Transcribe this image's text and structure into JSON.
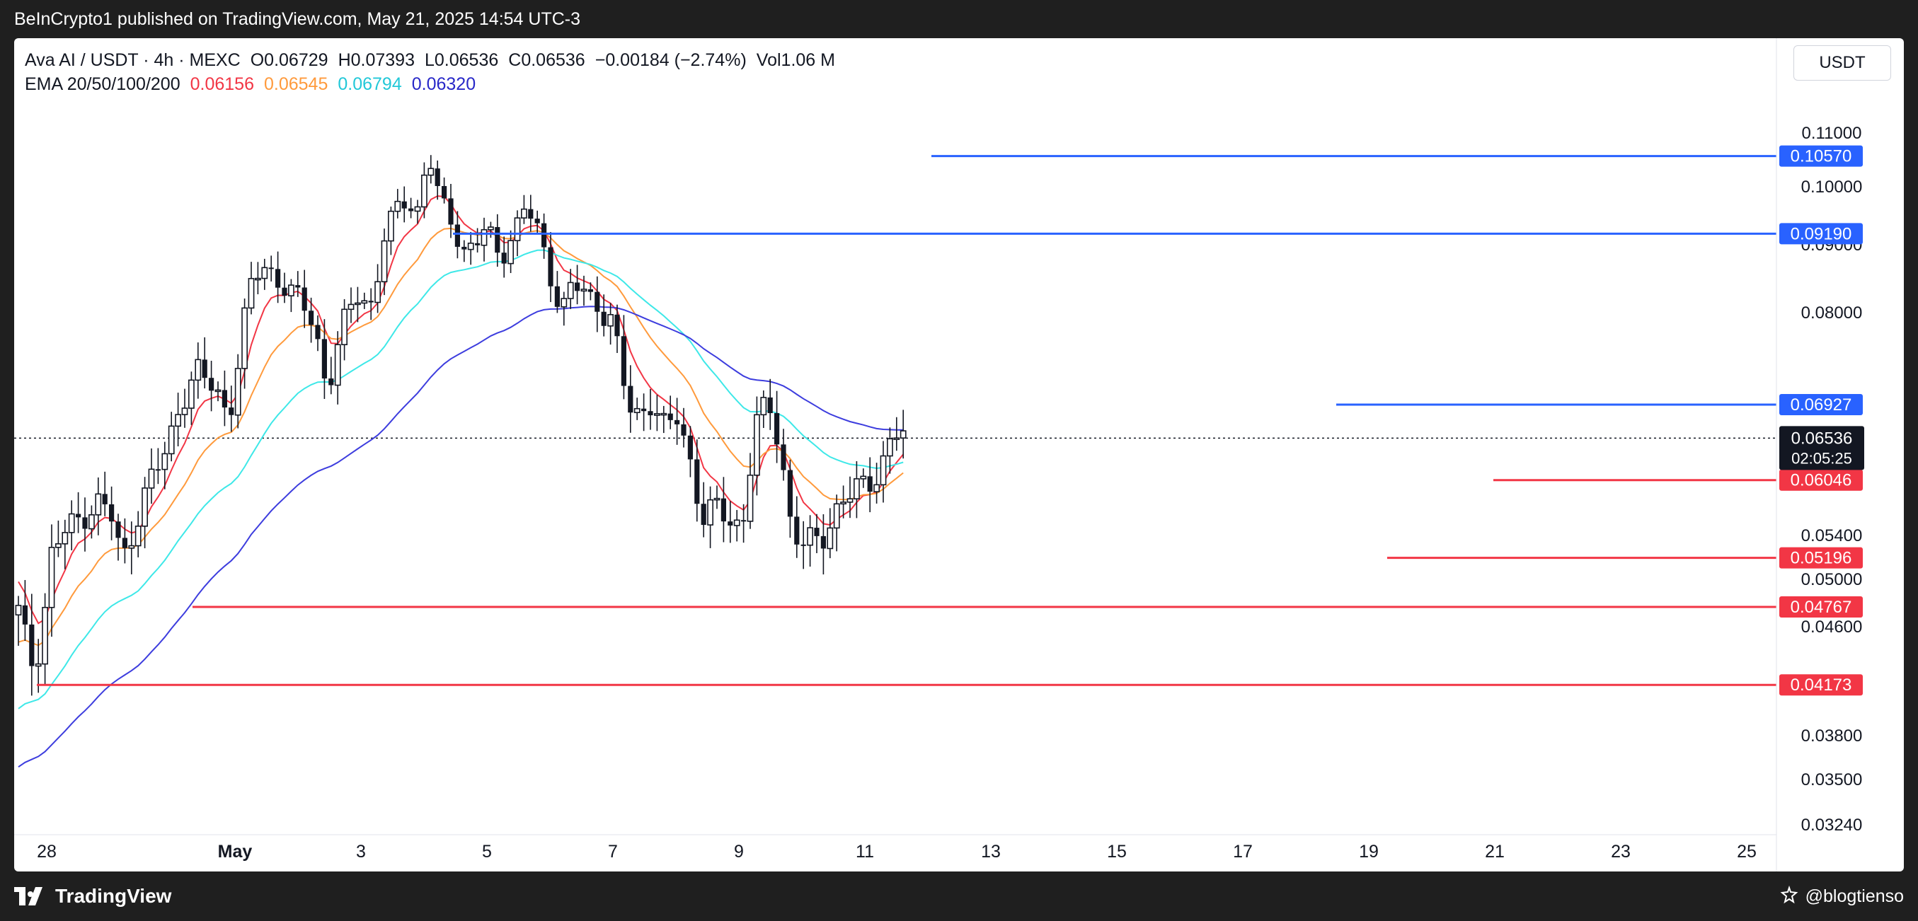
{
  "header": {
    "published": "BeInCrypto1 published on TradingView.com, May 21, 2025 14:54 UTC-3"
  },
  "footer": {
    "brand": "TradingView",
    "credit": "@blogtienso"
  },
  "symbol": {
    "title": "Ava AI / USDT · 4h · MEXC",
    "open": "O0.06729",
    "high": "H0.07393",
    "low": "L0.06536",
    "close": "C0.06536",
    "change": "−0.00184 (−2.74%)",
    "volume": "Vol1.06 M"
  },
  "ema_legend": {
    "label": "EMA 20/50/100/200",
    "values": [
      "0.06156",
      "0.06545",
      "0.06794",
      "0.06320"
    ]
  },
  "currency_button": "USDT",
  "colors": {
    "ema20": "#f23645",
    "ema50": "#ff9a3c",
    "ema100": "#3ee8e8",
    "ema200": "#3d3dde",
    "resistance": "#2962ff",
    "support": "#f23645",
    "candle": "#131722"
  },
  "chart_data": {
    "type": "candlestick",
    "x_ticks": [
      "28",
      "May",
      "3",
      "5",
      "7",
      "9",
      "11",
      "13",
      "15",
      "17",
      "19",
      "21",
      "23",
      "25"
    ],
    "y_ticks": [
      "0.11000",
      "0.10000",
      "0.09000",
      "0.08000",
      "0.05400",
      "0.05000",
      "0.04600",
      "0.03800",
      "0.03500",
      "0.03240"
    ],
    "last_price": "0.06536",
    "countdown": "02:05:25",
    "resistance_levels": [
      "0.10570",
      "0.09190",
      "0.06927"
    ],
    "support_levels": [
      "0.06046",
      "0.05196",
      "0.04767",
      "0.04173"
    ]
  }
}
